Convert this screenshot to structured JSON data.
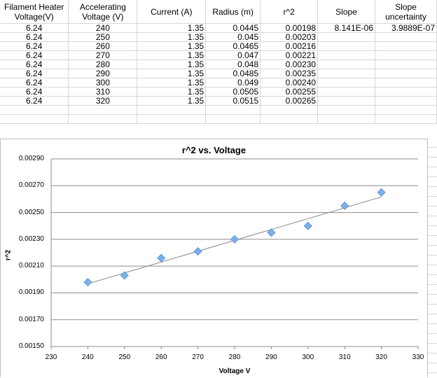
{
  "table": {
    "headers": [
      "Filament Heater Voltage(V)",
      "Accelerating Voltage (V)",
      "Current (A)",
      "Radius (m)",
      "r^2",
      "Slope",
      "Slope uncertainty"
    ],
    "rows": [
      [
        "6.24",
        "240",
        "1.35",
        "0.0445",
        "0.00198",
        "8.141E-06",
        "3.9889E-07"
      ],
      [
        "6.24",
        "250",
        "1.35",
        "0.045",
        "0.00203",
        "",
        ""
      ],
      [
        "6.24",
        "260",
        "1.35",
        "0.0465",
        "0.00216",
        "",
        ""
      ],
      [
        "6.24",
        "270",
        "1.35",
        "0.047",
        "0.00221",
        "",
        ""
      ],
      [
        "6.24",
        "280",
        "1.35",
        "0.048",
        "0.00230",
        "",
        ""
      ],
      [
        "6.24",
        "290",
        "1.35",
        "0.0485",
        "0.00235",
        "",
        ""
      ],
      [
        "6.24",
        "300",
        "1.35",
        "0.049",
        "0.00240",
        "",
        ""
      ],
      [
        "6.24",
        "310",
        "1.35",
        "0.0505",
        "0.00255",
        "",
        ""
      ],
      [
        "6.24",
        "320",
        "1.35",
        "0.0515",
        "0.00265",
        "",
        ""
      ]
    ]
  },
  "chart_data": {
    "type": "scatter",
    "title": "r^2 vs. Voltage",
    "xlabel": "Voltage V",
    "ylabel": "r^2",
    "xlim": [
      230,
      330
    ],
    "ylim": [
      0.0015,
      0.0029
    ],
    "xticks": [
      "230",
      "240",
      "250",
      "260",
      "270",
      "280",
      "290",
      "300",
      "310",
      "320",
      "330"
    ],
    "yticks": [
      "0.00150",
      "0.00170",
      "0.00190",
      "0.00210",
      "0.00230",
      "0.00250",
      "0.00270",
      "0.00290"
    ],
    "grid": true,
    "trendline": true,
    "marker_color": "#7bb0e8",
    "x": [
      240,
      250,
      260,
      270,
      280,
      290,
      300,
      310,
      320
    ],
    "y": [
      0.00198,
      0.00203,
      0.00216,
      0.00221,
      0.0023,
      0.00235,
      0.0024,
      0.00255,
      0.00265
    ]
  }
}
